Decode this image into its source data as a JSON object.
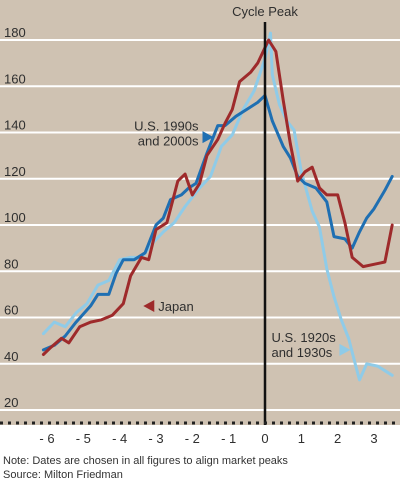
{
  "colors": {
    "background": "#cfc2b2",
    "gridline": "#ffffff",
    "us_1990s_2000s": "#1f6fb2",
    "japan": "#9e2a2b",
    "us_1920s_1930s": "#8fcbe8",
    "peak_line": "#111111",
    "axis": "#222222"
  },
  "footnotes": {
    "note": "Note: Dates are chosen in all figures to align market peaks",
    "source": "Source: Milton Friedman"
  },
  "chart_data": {
    "type": "line",
    "title": "",
    "xlabel": "",
    "ylabel": "",
    "xlim": [
      -6.5,
      3.55
    ],
    "ylim": [
      14,
      190
    ],
    "x_ticks": [
      -6,
      -5,
      -4,
      -3,
      -2,
      -1,
      0,
      1,
      2,
      3
    ],
    "x_tick_labels": [
      "- 6",
      "- 5",
      "- 4",
      "- 3",
      "- 2",
      "- 1",
      "0",
      "1",
      "2",
      "3"
    ],
    "y_ticks": [
      20,
      40,
      60,
      80,
      100,
      120,
      140,
      160,
      180
    ],
    "grid": true,
    "vertical_line": {
      "x": 0,
      "label": "Cycle Peak"
    },
    "series": [
      {
        "name": "U.S. 1990s and 2000s",
        "label_lines": [
          "U.S. 1990s",
          "and 2000s"
        ],
        "color": "#1f6fb2",
        "points": [
          [
            -6.1,
            46
          ],
          [
            -5.8,
            48
          ],
          [
            -5.5,
            52
          ],
          [
            -5.2,
            58
          ],
          [
            -4.8,
            65
          ],
          [
            -4.6,
            70
          ],
          [
            -4.3,
            70
          ],
          [
            -4.1,
            79
          ],
          [
            -3.9,
            85
          ],
          [
            -3.6,
            85
          ],
          [
            -3.3,
            88
          ],
          [
            -3.0,
            100
          ],
          [
            -2.8,
            103
          ],
          [
            -2.6,
            111
          ],
          [
            -2.3,
            113
          ],
          [
            -2.1,
            116
          ],
          [
            -1.9,
            118
          ],
          [
            -1.6,
            131
          ],
          [
            -1.3,
            143
          ],
          [
            -1.1,
            143
          ],
          [
            -0.8,
            147
          ],
          [
            -0.5,
            150
          ],
          [
            -0.2,
            153
          ],
          [
            0.0,
            156
          ],
          [
            0.2,
            145
          ],
          [
            0.5,
            134
          ],
          [
            0.7,
            129
          ],
          [
            0.9,
            121
          ],
          [
            1.1,
            118
          ],
          [
            1.4,
            116
          ],
          [
            1.7,
            110
          ],
          [
            1.9,
            95
          ],
          [
            2.2,
            94
          ],
          [
            2.4,
            90
          ],
          [
            2.6,
            97
          ],
          [
            2.8,
            103
          ],
          [
            3.0,
            107
          ],
          [
            3.3,
            115
          ],
          [
            3.5,
            121
          ]
        ]
      },
      {
        "name": "Japan",
        "label_lines": [
          "Japan"
        ],
        "color": "#9e2a2b",
        "points": [
          [
            -6.1,
            44
          ],
          [
            -5.9,
            47
          ],
          [
            -5.6,
            51
          ],
          [
            -5.4,
            49
          ],
          [
            -5.1,
            56
          ],
          [
            -4.8,
            58
          ],
          [
            -4.5,
            59
          ],
          [
            -4.2,
            61
          ],
          [
            -3.9,
            66
          ],
          [
            -3.7,
            78
          ],
          [
            -3.4,
            86
          ],
          [
            -3.2,
            85
          ],
          [
            -3.0,
            98
          ],
          [
            -2.7,
            101
          ],
          [
            -2.4,
            119
          ],
          [
            -2.2,
            122
          ],
          [
            -2.0,
            113
          ],
          [
            -1.8,
            118
          ],
          [
            -1.6,
            130
          ],
          [
            -1.3,
            137
          ],
          [
            -1.1,
            144
          ],
          [
            -0.9,
            150
          ],
          [
            -0.7,
            162
          ],
          [
            -0.4,
            166
          ],
          [
            -0.2,
            170
          ],
          [
            0.1,
            180
          ],
          [
            0.3,
            175
          ],
          [
            0.5,
            154
          ],
          [
            0.7,
            135
          ],
          [
            0.9,
            119
          ],
          [
            1.1,
            123
          ],
          [
            1.3,
            125
          ],
          [
            1.5,
            116
          ],
          [
            1.7,
            113
          ],
          [
            2.0,
            113
          ],
          [
            2.2,
            101
          ],
          [
            2.4,
            86
          ],
          [
            2.7,
            82
          ],
          [
            3.0,
            83
          ],
          [
            3.3,
            84
          ],
          [
            3.5,
            100
          ]
        ]
      },
      {
        "name": "U.S. 1920s and 1930s",
        "label_lines": [
          "U.S. 1920s",
          "and 1930s"
        ],
        "color": "#8fcbe8",
        "points": [
          [
            -6.1,
            53
          ],
          [
            -5.8,
            58
          ],
          [
            -5.5,
            56
          ],
          [
            -5.2,
            62
          ],
          [
            -4.9,
            66
          ],
          [
            -4.6,
            74
          ],
          [
            -4.3,
            76
          ],
          [
            -4.0,
            85
          ],
          [
            -3.7,
            86
          ],
          [
            -3.4,
            86
          ],
          [
            -3.1,
            92
          ],
          [
            -2.8,
            97
          ],
          [
            -2.5,
            101
          ],
          [
            -2.2,
            108
          ],
          [
            -1.8,
            116
          ],
          [
            -1.5,
            121
          ],
          [
            -1.2,
            134
          ],
          [
            -0.9,
            139
          ],
          [
            -0.6,
            150
          ],
          [
            -0.3,
            158
          ],
          [
            0.0,
            172
          ],
          [
            0.15,
            183
          ],
          [
            0.2,
            165
          ],
          [
            0.4,
            152
          ],
          [
            0.6,
            145
          ],
          [
            0.8,
            141
          ],
          [
            1.0,
            123
          ],
          [
            1.3,
            106
          ],
          [
            1.5,
            99
          ],
          [
            1.7,
            81
          ],
          [
            1.9,
            69
          ],
          [
            2.1,
            59
          ],
          [
            2.3,
            51
          ],
          [
            2.5,
            39
          ],
          [
            2.6,
            33
          ],
          [
            2.8,
            40
          ],
          [
            3.1,
            39
          ],
          [
            3.3,
            37
          ],
          [
            3.5,
            35
          ]
        ]
      }
    ],
    "annotations": [
      {
        "series": 0,
        "text_lines": [
          "U.S. 1990s",
          "and 2000s"
        ],
        "arrow_at": [
          -1.72,
          138
        ],
        "direction": "right"
      },
      {
        "series": 1,
        "text_lines": [
          "Japan"
        ],
        "arrow_at": [
          -3.35,
          65
        ],
        "direction": "left"
      },
      {
        "series": 2,
        "text_lines": [
          "U.S. 1920s",
          "and 1930s"
        ],
        "arrow_at": [
          2.05,
          46
        ],
        "direction": "right"
      }
    ]
  }
}
